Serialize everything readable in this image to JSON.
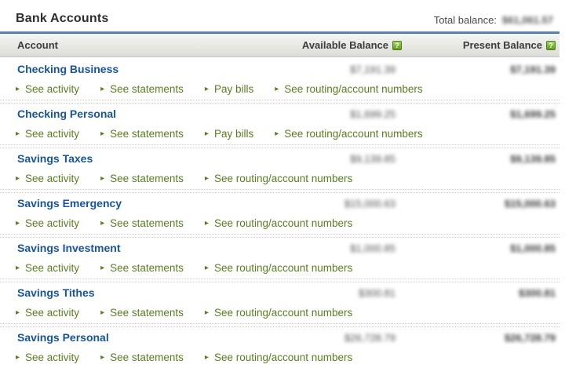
{
  "icons": {
    "link_arrow": "▸",
    "help_glyph": "?"
  },
  "header": {
    "title": "Bank Accounts",
    "total_balance_label": "Total balance:",
    "total_balance_value": "$61,061.57"
  },
  "table": {
    "columns": [
      "Account",
      "Available Balance",
      "Present Balance"
    ],
    "rows": [
      {
        "name": "Checking Business",
        "available": "$7,191.39",
        "present": "$7,191.39",
        "links": [
          "See activity",
          "See statements",
          "Pay bills",
          "See routing/account numbers"
        ]
      },
      {
        "name": "Checking Personal",
        "available": "$1,699.25",
        "present": "$1,699.25",
        "links": [
          "See activity",
          "See statements",
          "Pay bills",
          "See routing/account numbers"
        ]
      },
      {
        "name": "Savings Taxes",
        "available": "$9,139.85",
        "present": "$9,139.85",
        "links": [
          "See activity",
          "See statements",
          "See routing/account numbers"
        ]
      },
      {
        "name": "Savings Emergency",
        "available": "$15,000.63",
        "present": "$15,000.63",
        "links": [
          "See activity",
          "See statements",
          "See routing/account numbers"
        ]
      },
      {
        "name": "Savings Investment",
        "available": "$1,000.85",
        "present": "$1,000.85",
        "links": [
          "See activity",
          "See statements",
          "See routing/account numbers"
        ]
      },
      {
        "name": "Savings Tithes",
        "available": "$300.81",
        "present": "$300.81",
        "links": [
          "See activity",
          "See statements",
          "See routing/account numbers"
        ]
      },
      {
        "name": "Savings Personal",
        "available": "$26,728.79",
        "present": "$26,728.79",
        "links": [
          "See activity",
          "See statements",
          "See routing/account numbers"
        ]
      }
    ]
  }
}
